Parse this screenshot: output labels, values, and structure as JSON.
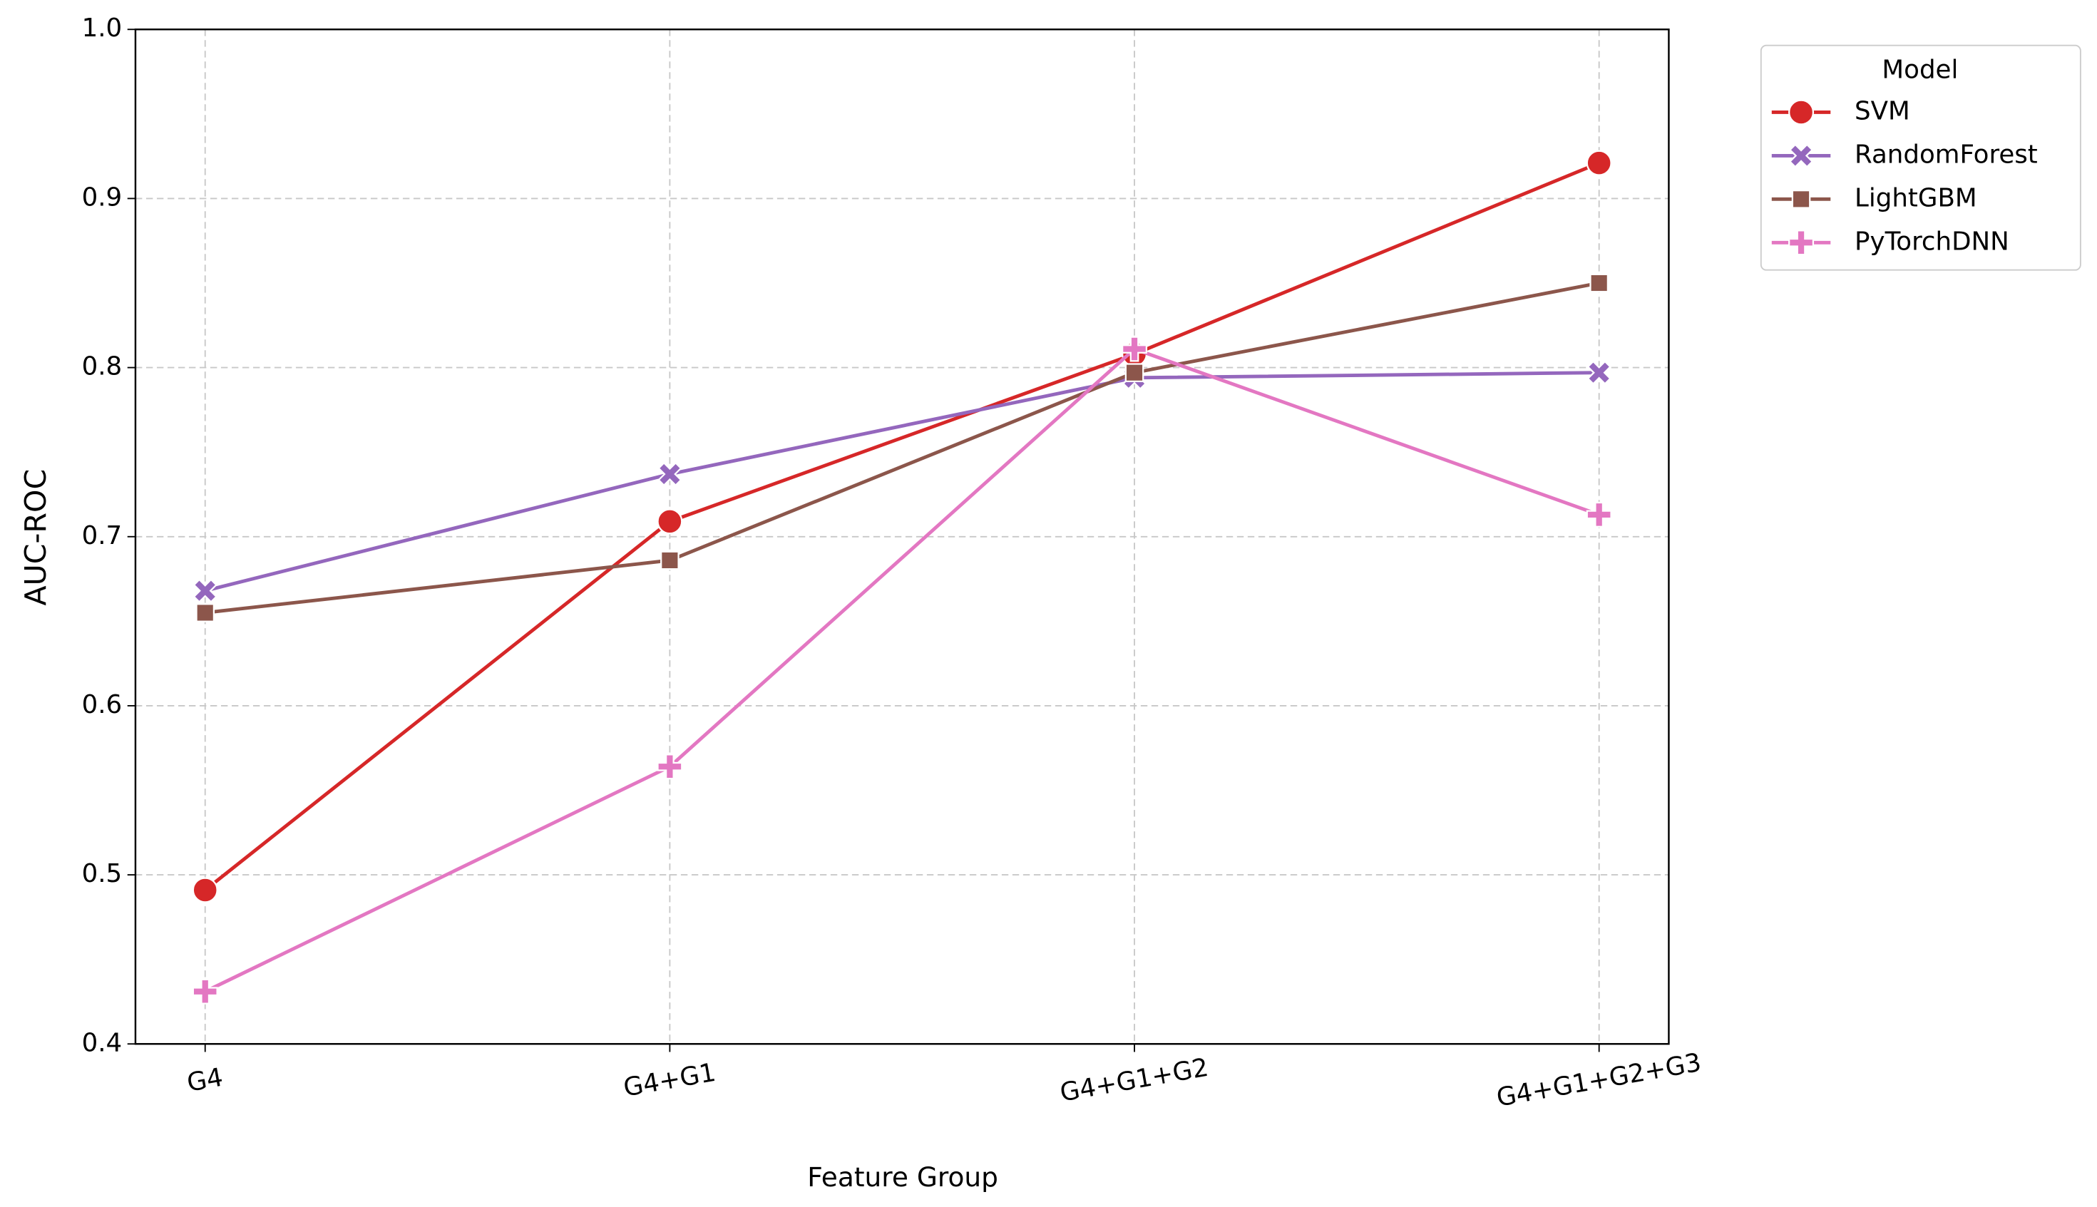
{
  "chart_data": {
    "type": "line",
    "xlabel": "Feature Group",
    "ylabel": "AUC-ROC",
    "categories": [
      "G4",
      "G4+G1",
      "G4+G1+G2",
      "G4+G1+G2+G3"
    ],
    "series": [
      {
        "name": "SVM",
        "color": "#d62728",
        "marker": "circle",
        "values": [
          0.491,
          0.709,
          0.808,
          0.921
        ]
      },
      {
        "name": "RandomForest",
        "color": "#9467bd",
        "marker": "x",
        "values": [
          0.668,
          0.737,
          0.794,
          0.797
        ]
      },
      {
        "name": "LightGBM",
        "color": "#8c564b",
        "marker": "square",
        "values": [
          0.655,
          0.686,
          0.797,
          0.85
        ]
      },
      {
        "name": "PyTorchDNN",
        "color": "#e377c2",
        "marker": "plus",
        "values": [
          0.431,
          0.564,
          0.811,
          0.713
        ]
      }
    ],
    "ylim": [
      0.4,
      1.0
    ],
    "yticks": [
      0.4,
      0.5,
      0.6,
      0.7,
      0.8,
      0.9,
      {
        "value": 1.0,
        "label": "1.0"
      }
    ],
    "grid": true,
    "legend_title": "Model",
    "legend": "outside upper right"
  }
}
